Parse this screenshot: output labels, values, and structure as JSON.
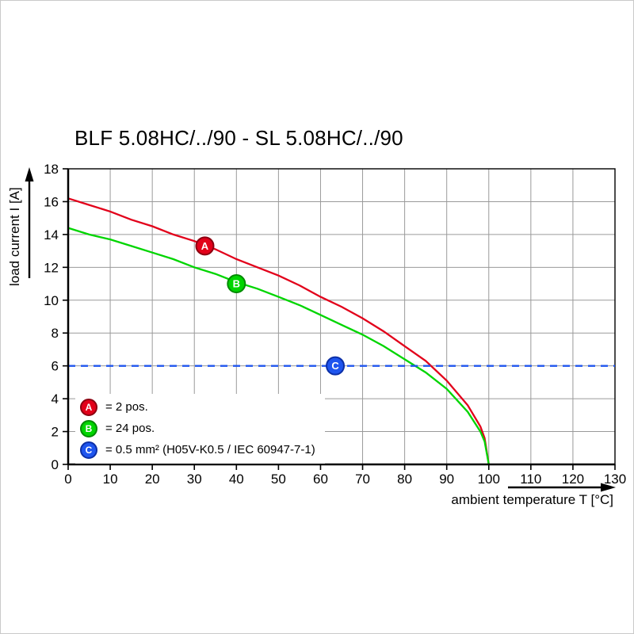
{
  "title": "BLF 5.08HC/../90 - SL 5.08HC/../90",
  "chart_data": {
    "type": "line",
    "title": "BLF 5.08HC/../90 - SL 5.08HC/../90",
    "xlabel": "ambient temperature T [°C]",
    "ylabel": "load current I [A]",
    "xlim": [
      0,
      130
    ],
    "ylim": [
      0,
      18
    ],
    "xticks": [
      0,
      10,
      20,
      30,
      40,
      50,
      60,
      70,
      80,
      90,
      100,
      110,
      120,
      130
    ],
    "yticks": [
      0,
      2,
      4,
      6,
      8,
      10,
      12,
      14,
      16,
      18
    ],
    "grid": true,
    "grid_color": "#9a9a9a",
    "legend_position": "bottom-left-inside",
    "series": [
      {
        "name": "A",
        "legend": "= 2 pos.",
        "color": "#e2001a",
        "edge": "#8c0010",
        "dashed": false,
        "marker": {
          "x": 32.5,
          "y": 13.3
        },
        "points": [
          [
            0,
            16.2
          ],
          [
            5,
            15.8
          ],
          [
            10,
            15.4
          ],
          [
            15,
            14.9
          ],
          [
            20,
            14.5
          ],
          [
            25,
            14.0
          ],
          [
            30,
            13.6
          ],
          [
            35,
            13.1
          ],
          [
            40,
            12.5
          ],
          [
            45,
            12.0
          ],
          [
            50,
            11.5
          ],
          [
            55,
            10.9
          ],
          [
            60,
            10.2
          ],
          [
            65,
            9.6
          ],
          [
            70,
            8.9
          ],
          [
            75,
            8.1
          ],
          [
            80,
            7.2
          ],
          [
            85,
            6.3
          ],
          [
            90,
            5.1
          ],
          [
            95,
            3.6
          ],
          [
            98,
            2.3
          ],
          [
            99,
            1.6
          ],
          [
            100,
            0
          ]
        ]
      },
      {
        "name": "B",
        "legend": "= 24 pos.",
        "color": "#00d500",
        "edge": "#008a00",
        "dashed": false,
        "marker": {
          "x": 40,
          "y": 11.0
        },
        "points": [
          [
            0,
            14.4
          ],
          [
            5,
            14.0
          ],
          [
            10,
            13.7
          ],
          [
            15,
            13.3
          ],
          [
            20,
            12.9
          ],
          [
            25,
            12.5
          ],
          [
            30,
            12.0
          ],
          [
            35,
            11.6
          ],
          [
            40,
            11.1
          ],
          [
            45,
            10.7
          ],
          [
            50,
            10.2
          ],
          [
            55,
            9.7
          ],
          [
            60,
            9.1
          ],
          [
            65,
            8.5
          ],
          [
            70,
            7.9
          ],
          [
            75,
            7.2
          ],
          [
            80,
            6.4
          ],
          [
            85,
            5.6
          ],
          [
            90,
            4.6
          ],
          [
            95,
            3.2
          ],
          [
            98,
            2.0
          ],
          [
            99,
            1.4
          ],
          [
            100,
            0
          ]
        ]
      },
      {
        "name": "C",
        "legend": "= 0.5 mm² (H05V-K0.5 / IEC 60947-7-1)",
        "color": "#1f55ee",
        "edge": "#0c2fa6",
        "dashed": true,
        "marker": {
          "x": 63.5,
          "y": 6
        },
        "points": [
          [
            0,
            6
          ],
          [
            130,
            6
          ]
        ]
      }
    ]
  }
}
